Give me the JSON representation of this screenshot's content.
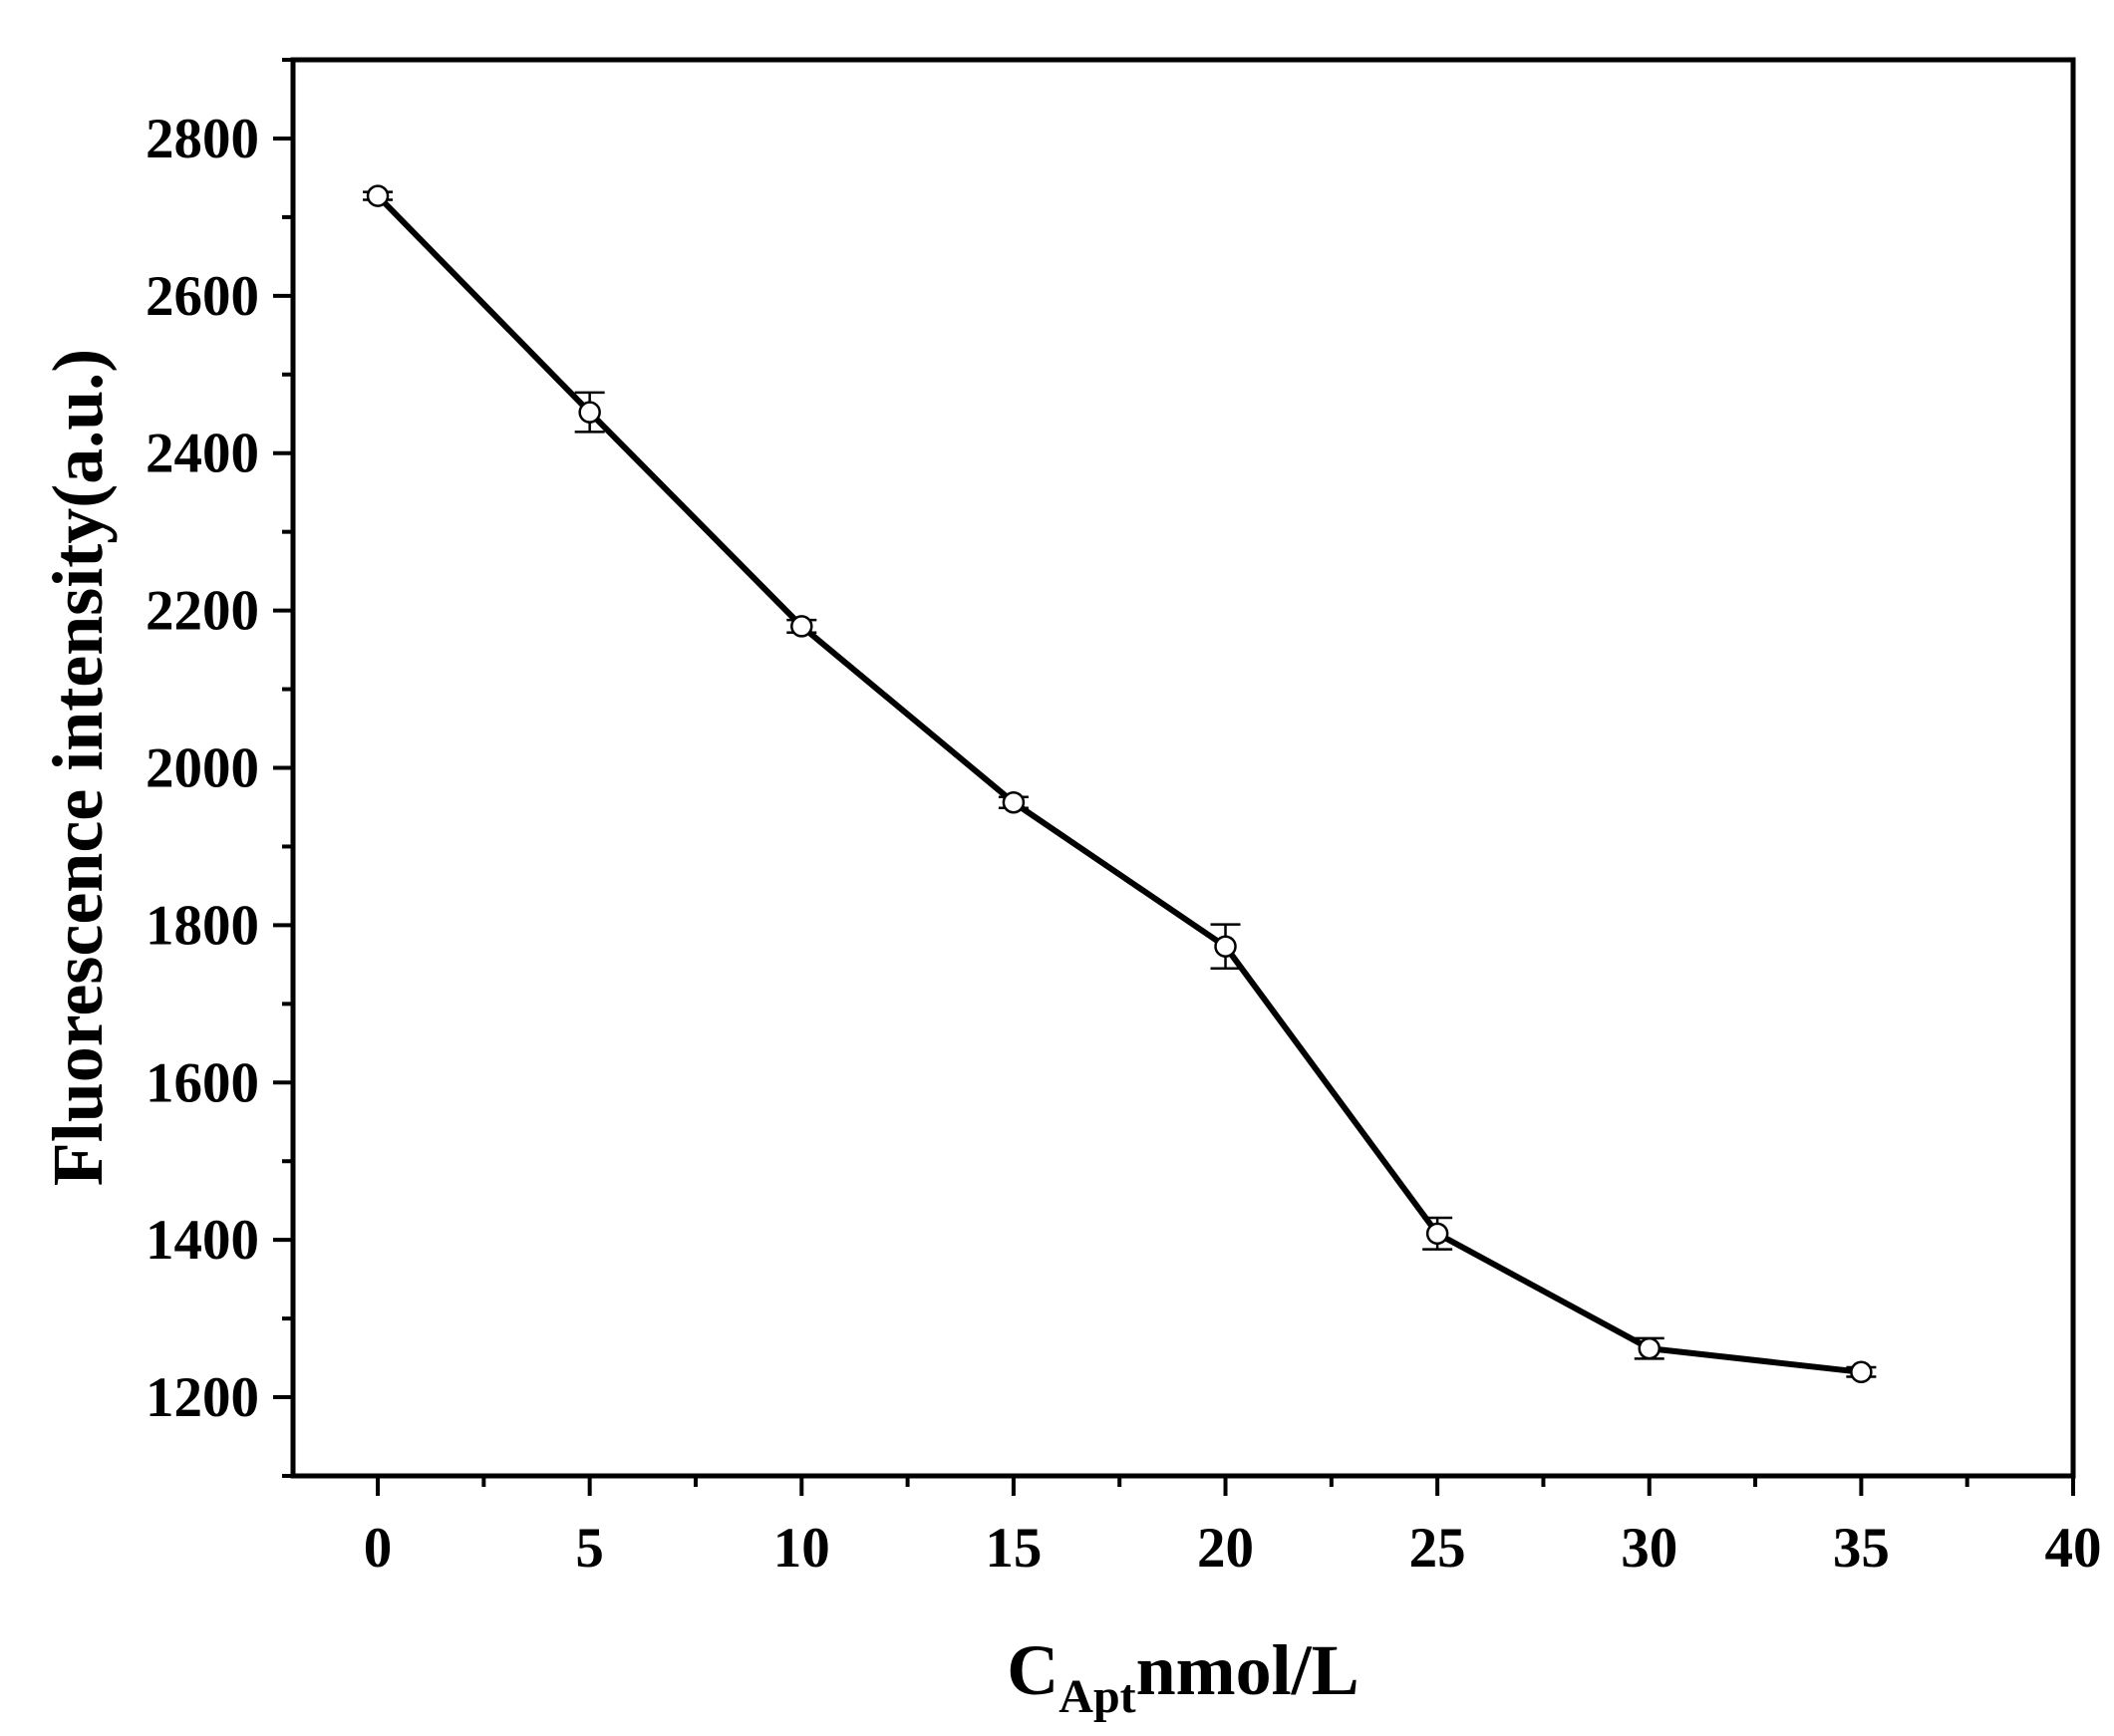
{
  "chart_data": {
    "type": "line",
    "xlabel": {
      "main": "C",
      "sub": "Apt",
      "rest": "nmol/L"
    },
    "ylabel": "Fluorescence intensity(a.u.)",
    "xlim": [
      -2,
      40
    ],
    "ylim": [
      1100,
      2900
    ],
    "xticks": [
      0,
      5,
      10,
      15,
      20,
      25,
      30,
      35,
      40
    ],
    "yticks": [
      1200,
      1400,
      1600,
      1800,
      2000,
      2200,
      2400,
      2600,
      2800
    ],
    "grid": false,
    "series": [
      {
        "x": [
          0,
          5,
          10,
          15,
          20,
          25,
          30,
          35
        ],
        "y": [
          2727,
          2452,
          2180,
          1956,
          1773,
          1408,
          1262,
          1232
        ],
        "err": [
          5,
          25,
          8,
          7,
          28,
          20,
          13,
          6
        ],
        "color": "#000000",
        "marker": "open-circle"
      }
    ]
  }
}
